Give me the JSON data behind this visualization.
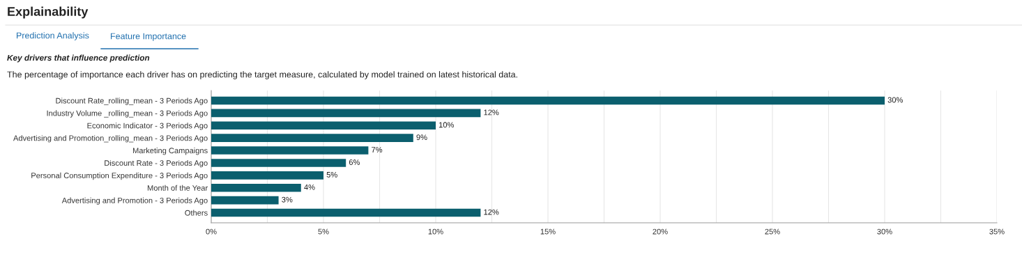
{
  "chart_data": {
    "type": "bar",
    "orientation": "horizontal",
    "title": "Explainability",
    "subtitle": "Key drivers that influence prediction",
    "annotations": [
      "Prediction Analysis",
      "Feature Importance",
      "The percentage of importance each driver has on predicting the target measure, calculated by model trained on latest historical data."
    ],
    "categories": [
      "Discount Rate_rolling_mean - 3 Periods Ago",
      "Industry Volume _rolling_mean - 3 Periods Ago",
      "Economic Indicator - 3 Periods Ago",
      "Advertising and Promotion_rolling_mean - 3 Periods Ago",
      "Marketing Campaigns",
      "Discount Rate - 3 Periods Ago",
      "Personal Consumption Expenditure - 3 Periods Ago",
      "Month of the Year",
      "Advertising and Promotion - 3 Periods Ago",
      "Others"
    ],
    "values": [
      30,
      12,
      10,
      9,
      7,
      6,
      5,
      4,
      3,
      12
    ],
    "value_labels": [
      "30%",
      "12%",
      "10%",
      "9%",
      "7%",
      "6%",
      "5%",
      "4%",
      "3%",
      "12%"
    ],
    "color": "#0b5f6e",
    "xlim": [
      0,
      35
    ],
    "xticks": [
      {
        "value": 0,
        "label": "0%"
      },
      {
        "value": 2.5,
        "label": null
      },
      {
        "value": 5,
        "label": "5%"
      },
      {
        "value": 7.5,
        "label": null
      },
      {
        "value": 10,
        "label": "10%"
      },
      {
        "value": 12.5,
        "label": null
      },
      {
        "value": 15,
        "label": "15%"
      },
      {
        "value": 17.5,
        "label": null
      },
      {
        "value": 20,
        "label": "20%"
      },
      {
        "value": 22.5,
        "label": null
      },
      {
        "value": 25,
        "label": "25%"
      },
      {
        "value": 27.5,
        "label": null
      },
      {
        "value": 30,
        "label": "30%"
      },
      {
        "value": 32.5,
        "label": null
      },
      {
        "value": 35,
        "label": "35%"
      }
    ],
    "grid": "x",
    "legend": false
  }
}
